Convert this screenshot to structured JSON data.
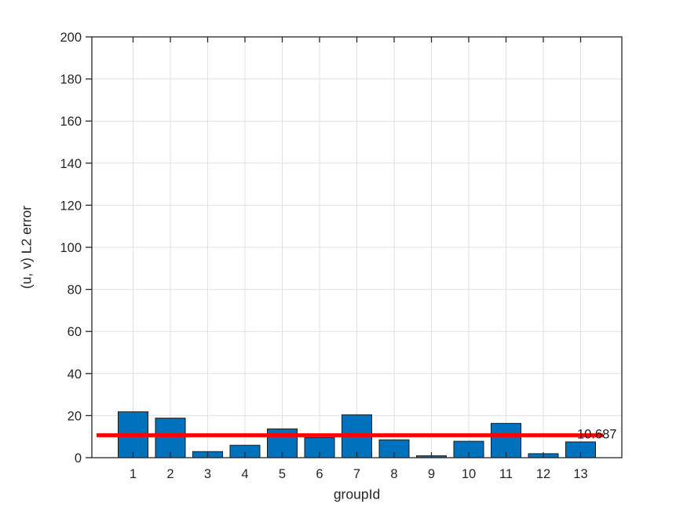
{
  "chart_data": {
    "type": "bar",
    "title": "",
    "xlabel": "groupId",
    "ylabel": "(u, v) L2 error",
    "categories": [
      "1",
      "2",
      "3",
      "4",
      "5",
      "6",
      "7",
      "8",
      "9",
      "10",
      "11",
      "12",
      "13"
    ],
    "values": [
      21.8,
      18.8,
      2.9,
      5.9,
      13.7,
      9.5,
      20.4,
      8.5,
      0.9,
      7.8,
      16.3,
      1.9,
      7.5
    ],
    "ylim": [
      0,
      200
    ],
    "yticks": [
      0,
      20,
      40,
      60,
      80,
      100,
      120,
      140,
      160,
      180,
      200
    ],
    "grid": true,
    "legend": null,
    "bar_width_fraction": 0.8,
    "threshold": {
      "value": 10.687,
      "label": "10.687",
      "color": "#ff0000"
    },
    "colors": {
      "bar_fill": "#0072BD",
      "bar_edge": "#1a1a1a",
      "grid": "#e0e0e0",
      "axis": "#262626",
      "tick_text": "#262626",
      "background": "#ffffff"
    }
  }
}
